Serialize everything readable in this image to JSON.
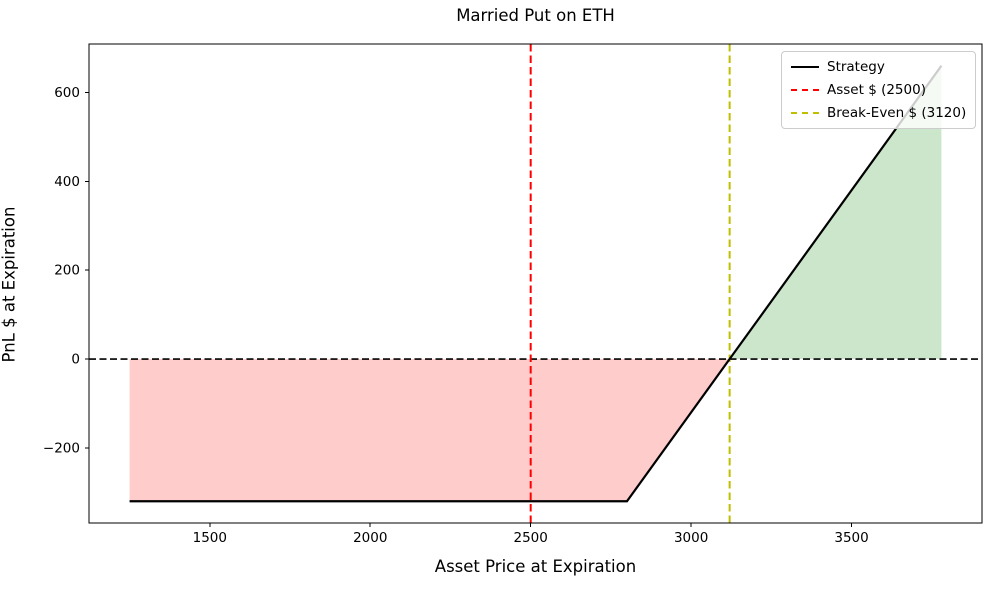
{
  "chart_data": {
    "type": "line",
    "title": "Married Put on ETH",
    "xlabel": "Asset Price at Expiration",
    "ylabel": "PnL $ at Expiration",
    "xlim": [
      1123.5,
      3906.5
    ],
    "ylim": [
      -369,
      709
    ],
    "xticks": [
      1500,
      2000,
      2500,
      3000,
      3500
    ],
    "yticks": [
      -200,
      0,
      200,
      400,
      600
    ],
    "grid": false,
    "series": [
      {
        "name": "Strategy",
        "color": "#000000",
        "style": "solid",
        "width": 2.2,
        "points": [
          [
            1250,
            -320
          ],
          [
            2800,
            -320
          ],
          [
            3120,
            0
          ],
          [
            3780,
            660
          ]
        ]
      }
    ],
    "hlines": [
      {
        "y": 0,
        "color": "#000000",
        "style": "dashed",
        "width": 1.6
      }
    ],
    "vlines": [
      {
        "x": 2500,
        "label": "Asset $ (2500)",
        "color": "#ff0000",
        "style": "dashed",
        "width": 2
      },
      {
        "x": 3120,
        "label": "Break-Even $ (3120)",
        "color": "#bfbf00",
        "style": "dashed",
        "width": 2
      }
    ],
    "fills": [
      {
        "name": "loss-region",
        "color": "#ff0000",
        "opacity": 0.2,
        "points": [
          [
            1250,
            0
          ],
          [
            3120,
            0
          ],
          [
            2800,
            -320
          ],
          [
            1250,
            -320
          ]
        ]
      },
      {
        "name": "profit-region",
        "color": "#008000",
        "opacity": 0.2,
        "points": [
          [
            3120,
            0
          ],
          [
            3780,
            0
          ],
          [
            3780,
            660
          ]
        ]
      }
    ],
    "legend": {
      "position": "upper right",
      "entries": [
        {
          "label": "Strategy",
          "color": "#000000",
          "style": "solid"
        },
        {
          "label": "Asset $ (2500)",
          "color": "#ff0000",
          "style": "dashed"
        },
        {
          "label": "Break-Even $ (3120)",
          "color": "#bfbf00",
          "style": "dashed"
        }
      ]
    }
  }
}
